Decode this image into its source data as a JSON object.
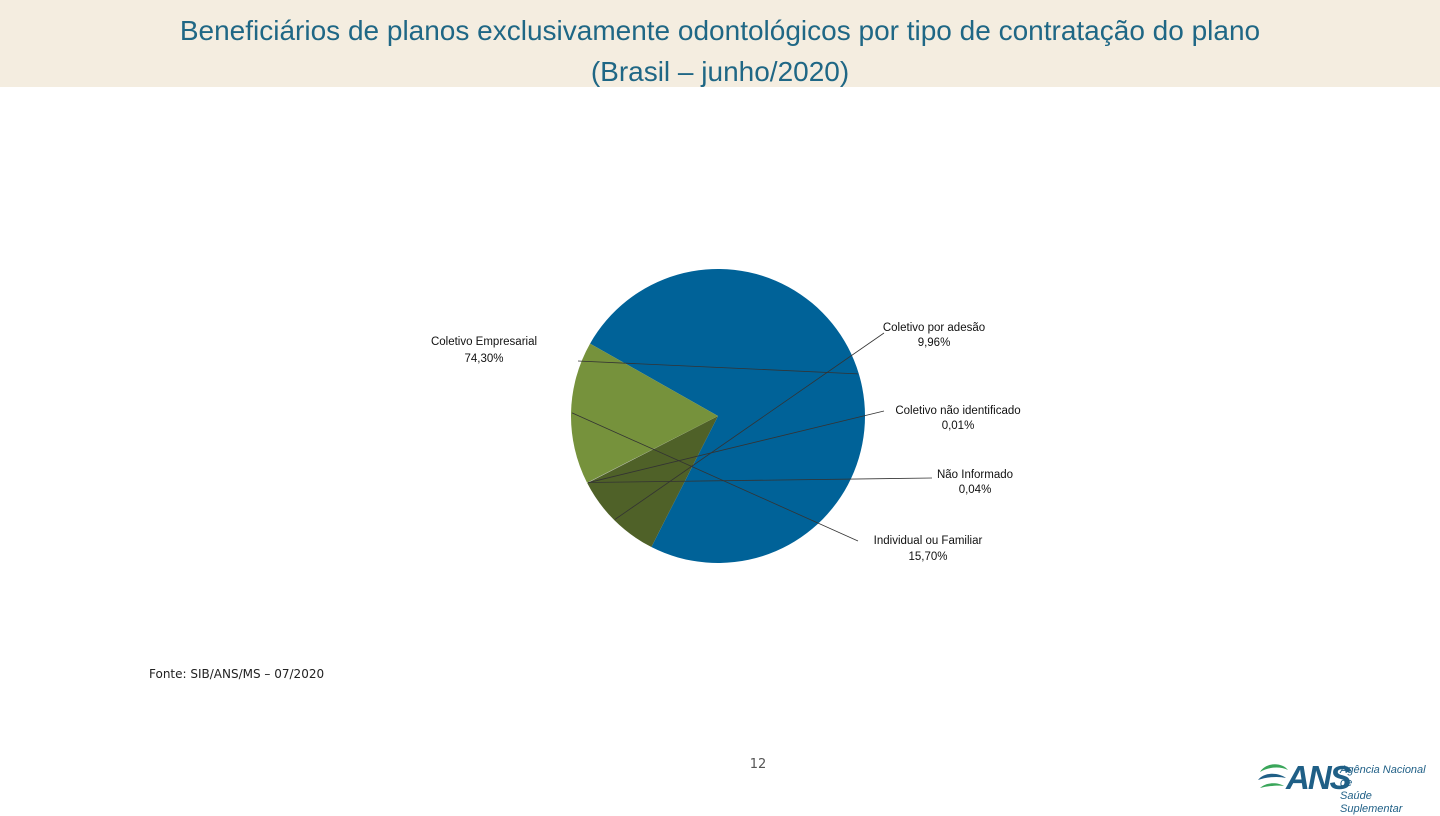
{
  "title": {
    "line1": "Beneficiários de planos exclusivamente odontológicos por tipo de contratação do plano",
    "line2": "(Brasil – junho/2020)"
  },
  "chart_data": {
    "type": "pie",
    "categories": [
      "Coletivo Empresarial",
      "Coletivo por adesão",
      "Coletivo não identificado",
      "Não Informado",
      "Individual ou Familiar"
    ],
    "values": [
      74.3,
      9.96,
      0.01,
      0.04,
      15.7
    ],
    "value_labels": [
      "74,30%",
      "9,96%",
      "0,01%",
      "0,04%",
      "15,70%"
    ],
    "colors": [
      "#006298",
      "#4f6128",
      "#8a8a5c",
      "#b0b0b0",
      "#76923c"
    ]
  },
  "source": "Fonte: SIB/ANS/MS – 07/2020",
  "page_number": "12",
  "logo": {
    "name": "ANS",
    "subtitle_line1": "Agência Nacional de",
    "subtitle_line2": "Saúde Suplementar",
    "colors": [
      "#1f5f86",
      "#3aa65a"
    ]
  }
}
